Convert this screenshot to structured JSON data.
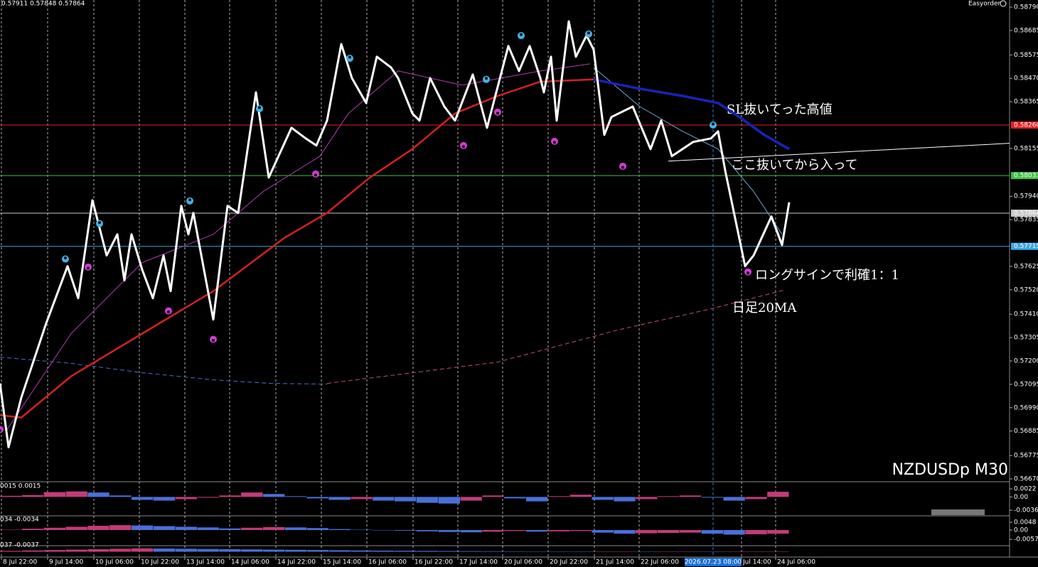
{
  "chart_data": {
    "type": "line",
    "header": "0.57911 0.57848 0.57864",
    "expert": "Easyorder",
    "symbol": "NZDUSDp M30",
    "xlim": [
      0,
      710
    ],
    "ylim": [
      0.5667,
      0.5879
    ],
    "yticks": [
      {
        "value": 0.5879,
        "label": "0.58790"
      },
      {
        "value": 0.58685,
        "label": "0.58685"
      },
      {
        "value": 0.58575,
        "label": "0.58575"
      },
      {
        "value": 0.5847,
        "label": "0.58470"
      },
      {
        "value": 0.58365,
        "label": "0.58365"
      },
      {
        "value": 0.58155,
        "label": "0.58155"
      },
      {
        "value": 0.5794,
        "label": "0.57940"
      },
      {
        "value": 0.57835,
        "label": "0.57835"
      },
      {
        "value": 0.57625,
        "label": "0.57625"
      },
      {
        "value": 0.5752,
        "label": "0.57520"
      },
      {
        "value": 0.5741,
        "label": "0.57410"
      },
      {
        "value": 0.57305,
        "label": "0.57305"
      },
      {
        "value": 0.572,
        "label": "0.57200"
      },
      {
        "value": 0.57095,
        "label": "0.57095"
      },
      {
        "value": 0.5699,
        "label": "0.56990"
      },
      {
        "value": 0.56885,
        "label": "0.56885"
      },
      {
        "value": 0.56775,
        "label": "0.56775"
      },
      {
        "value": 0.5667,
        "label": "0.56670"
      }
    ],
    "xticks": [
      {
        "value": 1,
        "label": "8 Jul 22:00"
      },
      {
        "value": 33.5,
        "label": "9 Jul 14:00"
      },
      {
        "value": 66,
        "label": "10 Jul 06:00"
      },
      {
        "value": 98,
        "label": "10 Jul 22:00"
      },
      {
        "value": 130,
        "label": "13 Jul 14:00"
      },
      {
        "value": 161.5,
        "label": "14 Jul 06:00"
      },
      {
        "value": 194,
        "label": "14 Jul 22:00"
      },
      {
        "value": 226,
        "label": "15 Jul 14:00"
      },
      {
        "value": 258,
        "label": "16 Jul 06:00"
      },
      {
        "value": 290.5,
        "label": "16 Jul 22:00"
      },
      {
        "value": 322,
        "label": "17 Jul 14:00"
      },
      {
        "value": 353.5,
        "label": "20 Jul 06:00"
      },
      {
        "value": 385.5,
        "label": "20 Jul 22:00"
      },
      {
        "value": 418,
        "label": "21 Jul 14:00"
      },
      {
        "value": 449.5,
        "label": "22 Jul 06:00"
      },
      {
        "value": 521.5,
        "label": "Jul 14:00"
      },
      {
        "value": 545.5,
        "label": "24 Jul 06:00"
      }
    ],
    "cursor": {
      "value": 501.5,
      "label": "2026.07.23 08:00"
    },
    "series": [
      {
        "color": "#ffffff",
        "width": 3,
        "x": [
          0,
          6,
          15,
          32.5,
          47.5,
          55,
          65,
          75,
          82.5,
          87.5,
          92.5,
          100,
          107.5,
          115,
          120,
          127.5,
          132.5,
          136,
          150,
          160,
          167.5,
          180,
          189,
          205,
          215,
          222.5,
          230,
          240,
          247.5,
          257.5,
          265,
          275,
          280,
          290,
          295,
          302.5,
          312.5,
          320,
          332.5,
          342.5,
          357.5,
          365,
          372.5,
          380,
          382.5,
          387.5,
          391.5,
          400,
          405,
          412.5,
          417.5,
          425,
          430,
          445,
          457.5,
          465,
          472.5,
          487.5,
          500,
          505,
          510,
          524,
          530,
          542.5,
          550,
          555
        ],
        "values": [
          0.57099,
          0.56812,
          0.57036,
          0.5737,
          0.57626,
          0.57482,
          0.57922,
          0.57674,
          0.57769,
          0.57562,
          0.57769,
          0.5761,
          0.57482,
          0.57674,
          0.57514,
          0.57897,
          0.57769,
          0.57865,
          0.57386,
          0.57897,
          0.57865,
          0.58407,
          0.58024,
          0.58248,
          0.582,
          0.58168,
          0.5828,
          0.58624,
          0.58471,
          0.58359,
          0.58567,
          0.58519,
          0.58471,
          0.58312,
          0.5828,
          0.58471,
          0.58343,
          0.5828,
          0.58487,
          0.58248,
          0.58615,
          0.58503,
          0.58615,
          0.58471,
          0.58407,
          0.58567,
          0.5828,
          0.58726,
          0.58567,
          0.58662,
          0.58599,
          0.58216,
          0.58296,
          0.58343,
          0.58152,
          0.5828,
          0.5812,
          0.58184,
          0.582,
          0.58232,
          0.58056,
          0.57626,
          0.57674,
          0.57849,
          0.57721,
          0.57913
        ]
      },
      {
        "color": "#d42020",
        "width": 2.5,
        "x": [
          0,
          15,
          50,
          100,
          150,
          200,
          230,
          260,
          290,
          320,
          350,
          380,
          417.5
        ],
        "values": [
          0.56956,
          0.56946,
          0.57131,
          0.57323,
          0.57514,
          0.57753,
          0.57865,
          0.58024,
          0.58152,
          0.58312,
          0.58391,
          0.58455,
          0.58465
        ]
      },
      {
        "color": "#1a22b8",
        "width": 3.5,
        "x": [
          417.5,
          450,
          480,
          505,
          520,
          537.5,
          555
        ],
        "values": [
          0.58465,
          0.58423,
          0.58391,
          0.58359,
          0.58296,
          0.58216,
          0.58152
        ]
      },
      {
        "color": "#b03ab0",
        "width": 1,
        "x": [
          5,
          50,
          100,
          150,
          185,
          225,
          245,
          280,
          325,
          380,
          415
        ],
        "values": [
          0.56892,
          0.57323,
          0.57642,
          0.57769,
          0.57961,
          0.5812,
          0.58312,
          0.58503,
          0.58439,
          0.58503,
          0.58535
        ]
      },
      {
        "color": "#6aa8d8",
        "width": 1,
        "x": [
          417.5,
          450,
          480,
          505,
          530,
          550
        ],
        "values": [
          0.58519,
          0.58343,
          0.58232,
          0.58152,
          0.57961,
          0.57769
        ]
      },
      {
        "color": "#c0506a",
        "width": 1,
        "dash": true,
        "x": [
          230,
          270,
          350,
          435,
          500,
          552.5
        ],
        "values": [
          0.57099,
          0.57131,
          0.57195,
          0.5734,
          0.57434,
          0.5752
        ]
      },
      {
        "color": "#4a70d0",
        "width": 1,
        "dash": true,
        "x": [
          0,
          50,
          100,
          150,
          190,
          230
        ],
        "values": [
          0.57217,
          0.57189,
          0.57147,
          0.57115,
          0.57099,
          0.57096
        ]
      }
    ],
    "markers": [
      {
        "color": "#3fb4e6",
        "x": [
          46,
          70,
          133.5,
          182.5,
          246,
          342,
          366.5,
          414,
          501.5
        ],
        "values": [
          0.57658,
          0.57817,
          0.57919,
          0.58334,
          0.5856,
          0.58465,
          0.58662,
          0.58669,
          0.5826
        ]
      },
      {
        "color": "#d43ad4",
        "x": [
          0,
          62,
          118.5,
          150,
          222,
          326,
          350,
          390,
          438,
          526
        ],
        "values": [
          0.56892,
          0.57622,
          0.57425,
          0.57297,
          0.5804,
          0.58168,
          0.58318,
          0.58187,
          0.58075,
          0.576
        ]
      }
    ],
    "levels": [
      {
        "value": 0.5826,
        "label": "0.58260",
        "color": "#e02020"
      },
      {
        "value": 0.58033,
        "label": "0.58033",
        "color": "#40c040"
      },
      {
        "value": 0.57864,
        "label": "0.57864",
        "color": "#c8c8c8"
      },
      {
        "value": 0.57715,
        "label": "0.57715",
        "color": "#3aa8e8"
      }
    ],
    "trendline": {
      "color": "#ffffff",
      "x": [
        470,
        710
      ],
      "values": [
        0.58098,
        0.58178
      ]
    },
    "annotations": [
      {
        "text": "SL抜いてった高値",
        "color": "#e02828"
      },
      {
        "text": "ここ抜いてから入って",
        "color": "#3cb43c"
      },
      {
        "text": "ロングサインで利確1：1",
        "color": "#3aa0e0"
      },
      {
        "text": "日足20MA",
        "color": "#ffffff"
      }
    ],
    "panels": [
      {
        "header": "0015 0.0015",
        "ylim": [
          -0.0036,
          0.0022
        ],
        "yticks": [
          0.0022,
          {
            "value": 0,
            "label": "0.00"
          },
          -0.0036
        ],
        "up_color": "#c23c78",
        "down_color": "#4a6fd8",
        "values": [
          0.0003,
          0.0005,
          0.0013,
          0.0015,
          0.0012,
          0.0004,
          -0.0008,
          -0.001,
          -0.0006,
          -0.0002,
          0.0004,
          0.0012,
          0.0008,
          0.0002,
          -0.0004,
          -0.0008,
          -0.0006,
          -0.001,
          -0.0012,
          -0.0016,
          -0.0018,
          -0.001,
          0.0004,
          -0.0004,
          -0.0012,
          0.0002,
          0.0006,
          -0.0008,
          -0.0012,
          -0.0006,
          0.0002,
          0.0004,
          -0.0002,
          -0.001,
          -0.0006,
          0.0014
        ]
      },
      {
        "header": "034 -0.0034",
        "ylim": [
          -0.0057,
          0.0048
        ],
        "yticks": [
          0.0048,
          {
            "value": 0,
            "label": "0.00"
          },
          -0.0057
        ],
        "up_color": "#c23c78",
        "down_color": "#4a6fd8",
        "values": [
          0.0002,
          0.0008,
          0.0014,
          0.002,
          0.0026,
          0.003,
          0.0028,
          0.0024,
          0.002,
          0.0016,
          0.001,
          0.0014,
          0.0018,
          0.0016,
          0.0012,
          0.0006,
          0.0002,
          -0.0002,
          -0.0004,
          -0.0008,
          -0.0012,
          -0.0014,
          -0.001,
          -0.0006,
          -0.001,
          -0.0008,
          -0.0006,
          -0.0016,
          -0.0022,
          -0.002,
          -0.0018,
          -0.0016,
          -0.0022,
          -0.0028,
          -0.0026,
          -0.0022
        ]
      },
      {
        "header": "037 -0.0037",
        "ylim": [
          -0.0037,
          0.0037
        ],
        "up_color": "#c23c78",
        "down_color": "#4a6fd8",
        "values": [
          0.0008,
          0.0012,
          0.0016,
          0.002,
          0.0024,
          0.0028,
          0.0032,
          0.003,
          0.0028,
          0.0026,
          0.0024,
          0.0022,
          0.002,
          0.0018,
          0.0016,
          0.0014,
          0.0012,
          0.001,
          0.0009,
          0.0008,
          0.0007,
          0.0006,
          0.0005,
          0.0004,
          0.0003,
          0.0002,
          0.0001,
          0.0001,
          0.0002,
          0.0001,
          0.0001,
          0.0002,
          0.0001,
          0.0001,
          0.0001,
          0.0002
        ]
      }
    ]
  }
}
